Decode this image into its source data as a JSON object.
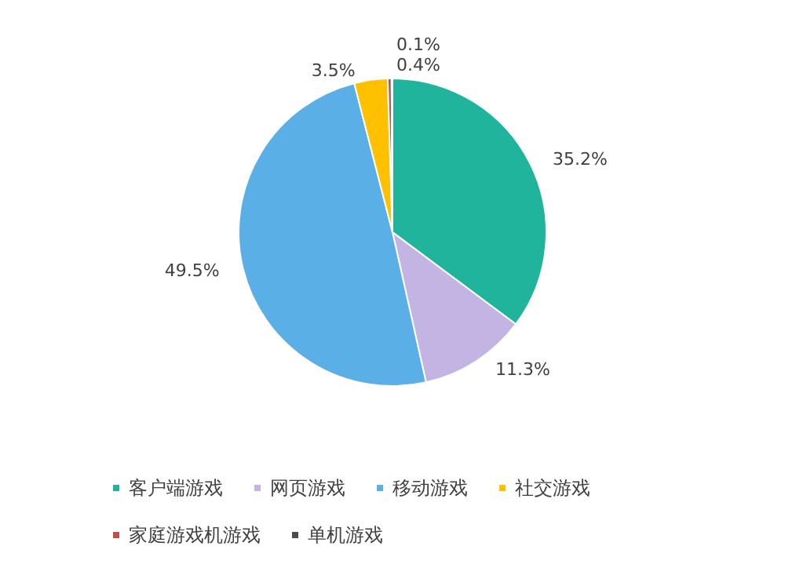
{
  "chart_data": {
    "type": "pie",
    "categories": [
      "客户端游戏",
      "网页游戏",
      "移动游戏",
      "社交游戏",
      "家庭游戏机游戏",
      "单机游戏"
    ],
    "values": [
      35.2,
      11.3,
      49.5,
      3.5,
      0.4,
      0.1
    ],
    "colors": [
      "#20b49c",
      "#c4b4e4",
      "#5aafe6",
      "#ffc000",
      "#c0504d",
      "#4a4a4a"
    ],
    "value_labels": [
      "35.2%",
      "11.3%",
      "49.5%",
      "3.5%",
      "0.4%",
      "0.1%"
    ],
    "legend": "bottom"
  }
}
